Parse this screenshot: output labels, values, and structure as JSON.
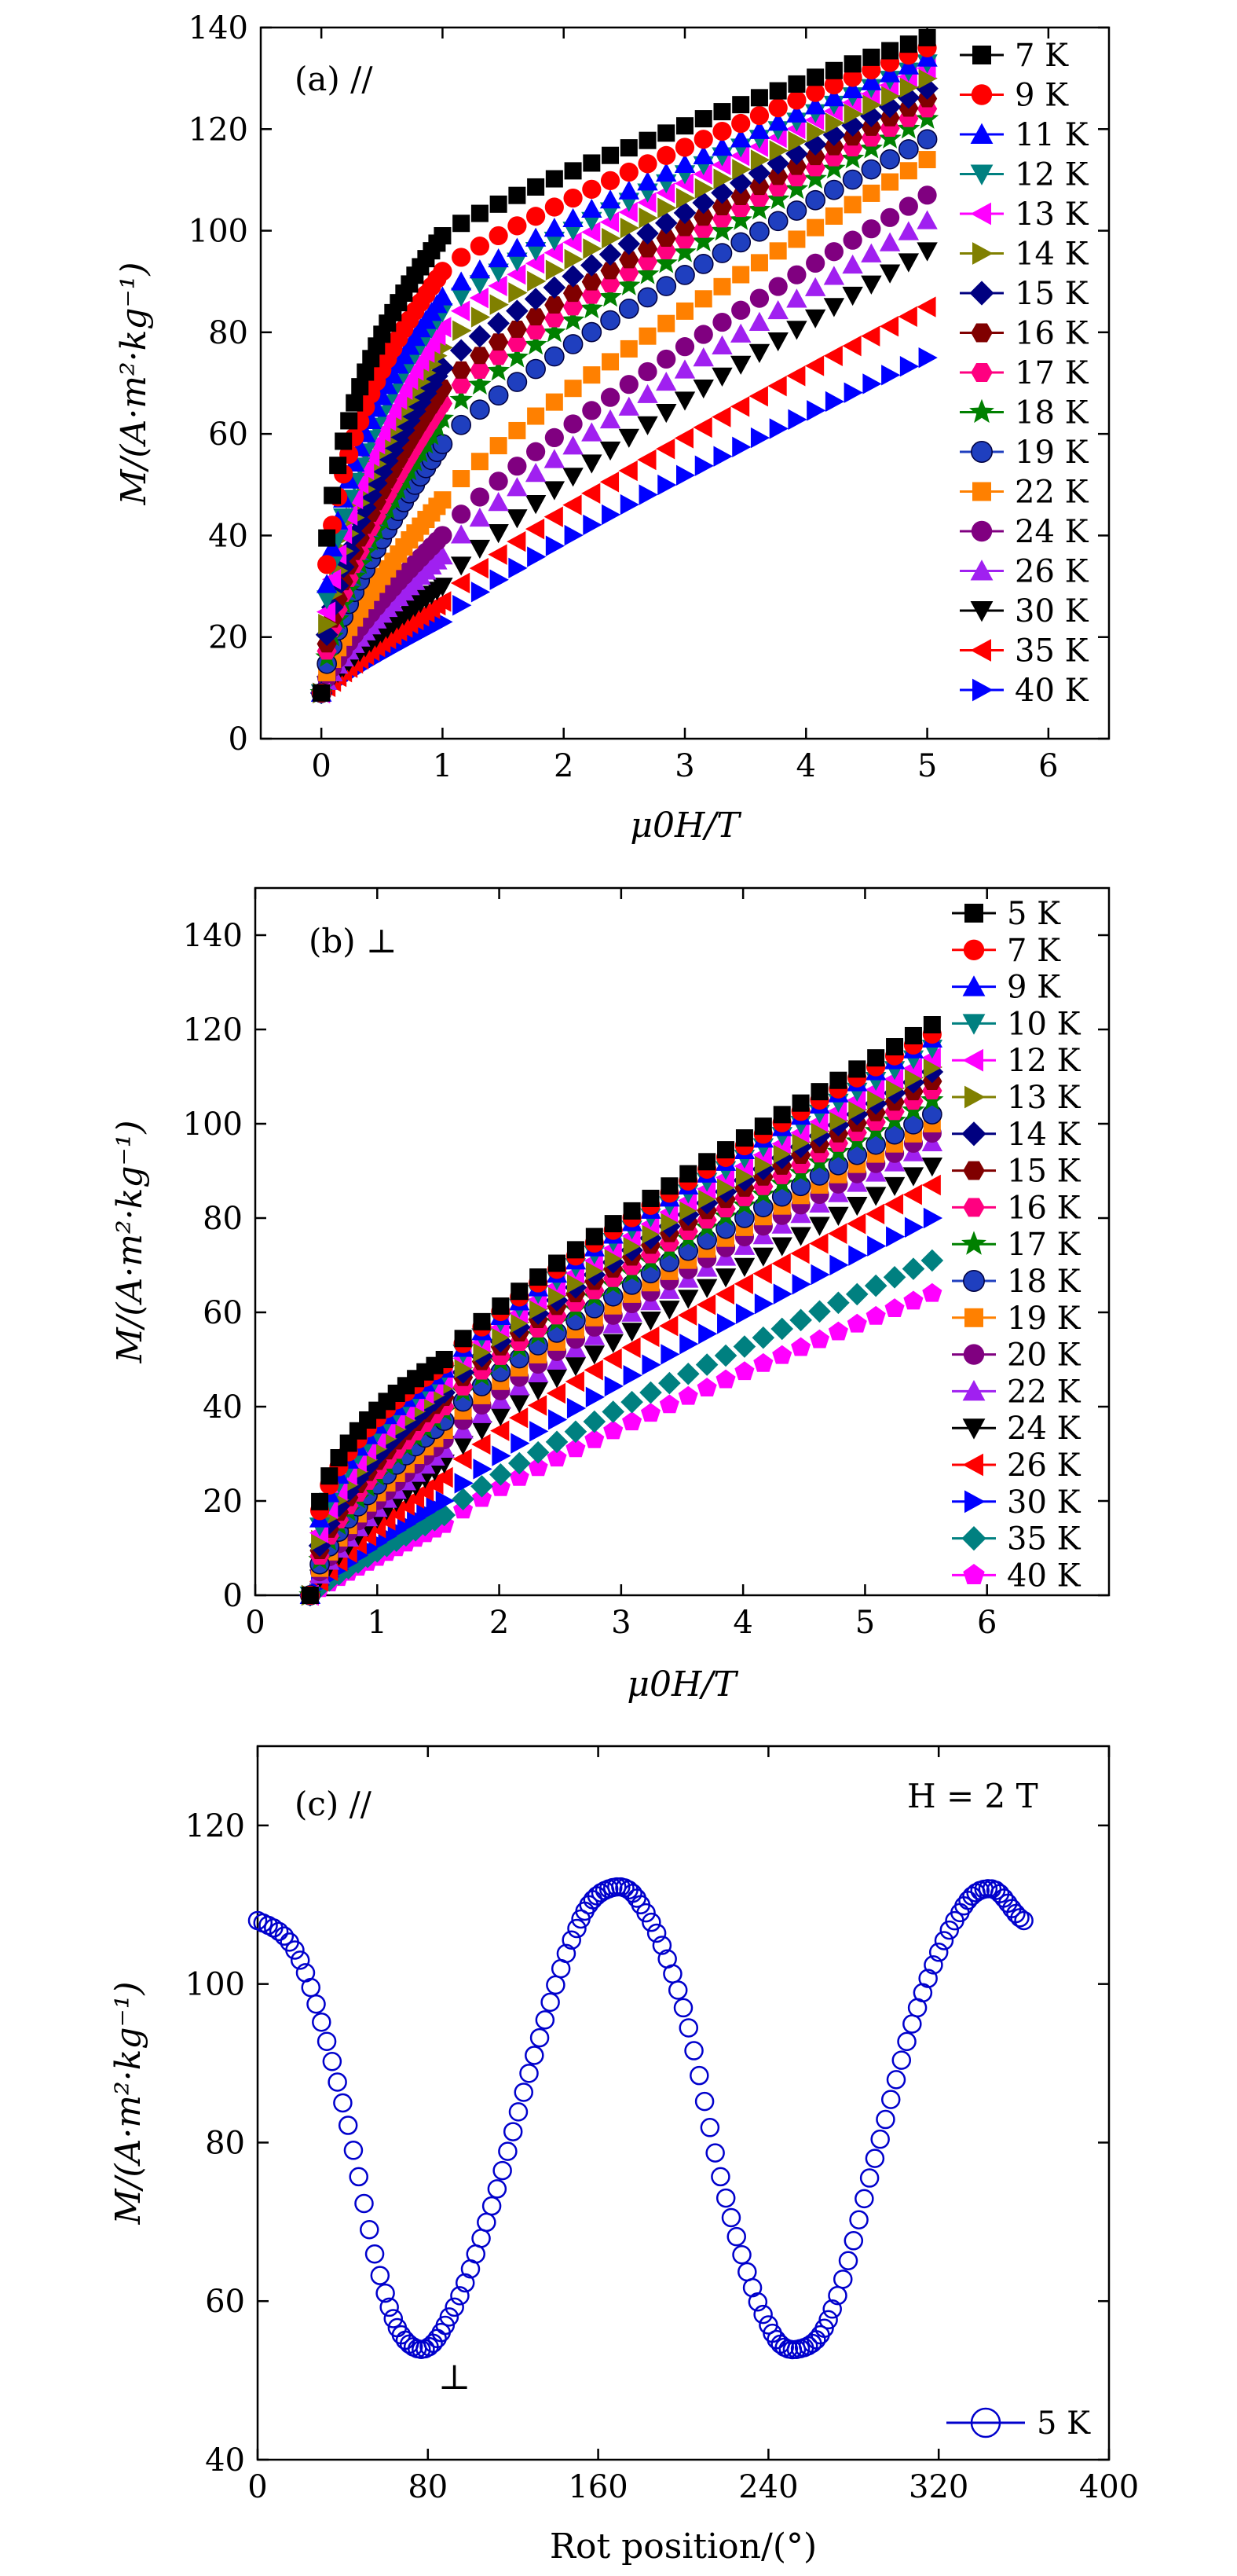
{
  "chart_data": [
    {
      "panel": "a",
      "type": "scatter",
      "panel_label": "(a) //",
      "xlabel": "μ0H/T",
      "ylabel": "M/(A·m²·kg⁻¹)",
      "xlim": [
        -0.5,
        6.5
      ],
      "ylim": [
        0,
        140
      ],
      "xticks": [
        0,
        1,
        2,
        3,
        4,
        5,
        6
      ],
      "yticks": [
        0,
        20,
        40,
        60,
        80,
        100,
        120,
        140
      ],
      "legend": "right",
      "series": [
        {
          "name": "7 K",
          "color": "#000000",
          "marker": "square",
          "m1": 99,
          "m5": 138
        },
        {
          "name": "9 K",
          "color": "#ff0000",
          "marker": "circle",
          "m1": 92,
          "m5": 136
        },
        {
          "name": "11 K",
          "color": "#0000ff",
          "marker": "triangle-up",
          "m1": 87,
          "m5": 134
        },
        {
          "name": "12 K",
          "color": "#008080",
          "marker": "triangle-down",
          "m1": 84,
          "m5": 133
        },
        {
          "name": "13 K",
          "color": "#ff00ff",
          "marker": "triangle-left",
          "m1": 81,
          "m5": 132
        },
        {
          "name": "14 K",
          "color": "#808000",
          "marker": "triangle-right",
          "m1": 77,
          "m5": 130
        },
        {
          "name": "15 K",
          "color": "#000080",
          "marker": "diamond",
          "m1": 73,
          "m5": 128
        },
        {
          "name": "16 K",
          "color": "#800000",
          "marker": "hexagon",
          "m1": 69,
          "m5": 126
        },
        {
          "name": "17 K",
          "color": "#ff0080",
          "marker": "hexagon",
          "m1": 66,
          "m5": 124
        },
        {
          "name": "18 K",
          "color": "#008000",
          "marker": "star",
          "m1": 63,
          "m5": 122
        },
        {
          "name": "19 K",
          "color": "#1f3fbf",
          "marker": "sphere",
          "m1": 58,
          "m5": 118
        },
        {
          "name": "22 K",
          "color": "#ff8000",
          "marker": "square",
          "m1": 47,
          "m5": 114
        },
        {
          "name": "24 K",
          "color": "#800080",
          "marker": "circle",
          "m1": 40,
          "m5": 107
        },
        {
          "name": "26 K",
          "color": "#a020f0",
          "marker": "triangle-up",
          "m1": 36,
          "m5": 102
        },
        {
          "name": "30 K",
          "color": "#000000",
          "marker": "triangle-down",
          "m1": 30,
          "m5": 96
        },
        {
          "name": "35 K",
          "color": "#ff0000",
          "marker": "triangle-left",
          "m1": 27,
          "m5": 85
        },
        {
          "name": "40 K",
          "color": "#0000ff",
          "marker": "triangle-right",
          "m1": 23,
          "m5": 75
        }
      ]
    },
    {
      "panel": "b",
      "type": "scatter",
      "panel_label": "(b) ⊥",
      "xlabel": "μ0H/T",
      "ylabel": "M/(A·m²·kg⁻¹)",
      "xlim": [
        0,
        7
      ],
      "ylim": [
        0,
        150
      ],
      "xticks": [
        0,
        1,
        2,
        3,
        4,
        5,
        6
      ],
      "yticks": [
        0,
        20,
        40,
        60,
        80,
        100,
        120,
        140
      ],
      "legend": "right",
      "series": [
        {
          "name": "5 K",
          "color": "#000000",
          "marker": "square",
          "m1": 50,
          "m5": 121
        },
        {
          "name": "7 K",
          "color": "#ff0000",
          "marker": "circle",
          "m1": 49,
          "m5": 119
        },
        {
          "name": "9 K",
          "color": "#0000ff",
          "marker": "triangle-up",
          "m1": 48,
          "m5": 118
        },
        {
          "name": "10 K",
          "color": "#008080",
          "marker": "triangle-down",
          "m1": 47,
          "m5": 116
        },
        {
          "name": "12 K",
          "color": "#ff00ff",
          "marker": "triangle-left",
          "m1": 46,
          "m5": 114
        },
        {
          "name": "13 K",
          "color": "#808000",
          "marker": "triangle-right",
          "m1": 44,
          "m5": 112
        },
        {
          "name": "14 K",
          "color": "#000080",
          "marker": "diamond",
          "m1": 43,
          "m5": 111
        },
        {
          "name": "15 K",
          "color": "#800000",
          "marker": "hexagon",
          "m1": 42,
          "m5": 109
        },
        {
          "name": "16 K",
          "color": "#ff0080",
          "marker": "hexagon",
          "m1": 40,
          "m5": 107
        },
        {
          "name": "17 K",
          "color": "#008000",
          "marker": "star",
          "m1": 39,
          "m5": 105
        },
        {
          "name": "18 K",
          "color": "#1f3fbf",
          "marker": "sphere",
          "m1": 37,
          "m5": 102
        },
        {
          "name": "19 K",
          "color": "#ff8000",
          "marker": "square",
          "m1": 35,
          "m5": 100
        },
        {
          "name": "20 K",
          "color": "#800080",
          "marker": "circle",
          "m1": 33,
          "m5": 98
        },
        {
          "name": "22 K",
          "color": "#a020f0",
          "marker": "triangle-up",
          "m1": 31,
          "m5": 96
        },
        {
          "name": "24 K",
          "color": "#000000",
          "marker": "triangle-down",
          "m1": 28,
          "m5": 91
        },
        {
          "name": "26 K",
          "color": "#ff0000",
          "marker": "triangle-left",
          "m1": 25,
          "m5": 87
        },
        {
          "name": "30 K",
          "color": "#0000ff",
          "marker": "triangle-right",
          "m1": 20,
          "m5": 80
        },
        {
          "name": "35 K",
          "color": "#008080",
          "marker": "diamond",
          "m1": 17,
          "m5": 71
        },
        {
          "name": "40 K",
          "color": "#ff00ff",
          "marker": "pentagon",
          "m1": 15,
          "m5": 64
        }
      ]
    },
    {
      "panel": "c",
      "type": "scatter",
      "panel_label": "(c) //",
      "annotation": "H = 2 T",
      "min_label": "⊥",
      "xlabel": "Rot position/(°)",
      "ylabel": "M/(A·m²·kg⁻¹)",
      "xlim": [
        0,
        400
      ],
      "ylim": [
        40,
        130
      ],
      "xticks": [
        0,
        80,
        160,
        240,
        320,
        400
      ],
      "yticks": [
        40,
        60,
        80,
        100,
        120
      ],
      "legend": "bottom-right",
      "series": [
        {
          "name": "5 K",
          "color": "#0000cc",
          "marker": "open-circle",
          "x": [
            0,
            20,
            40,
            60,
            75,
            90,
            110,
            130,
            150,
            165,
            180,
            200,
            220,
            240,
            255,
            270,
            290,
            310,
            330,
            345,
            360
          ],
          "y": [
            108,
            103,
            85,
            61,
            54,
            58,
            72,
            91,
            107,
            112,
            110,
            97,
            73,
            57,
            54,
            59,
            78,
            97,
            109,
            112,
            108
          ]
        }
      ]
    }
  ]
}
